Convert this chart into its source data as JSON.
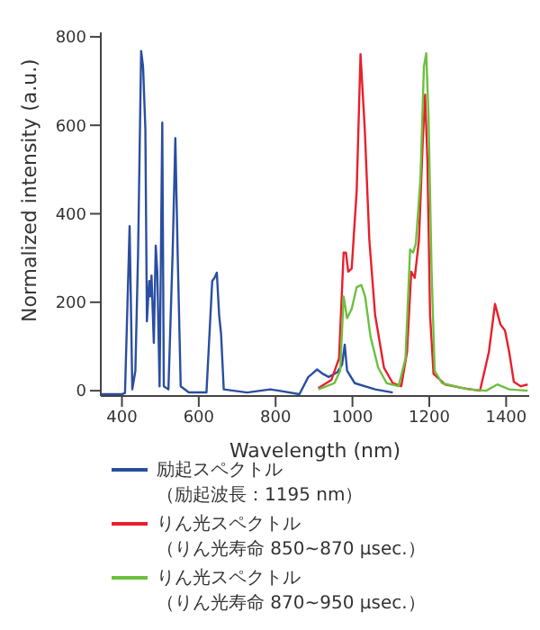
{
  "chart_data": {
    "type": "line",
    "xlabel": "Wavelength (nm)",
    "ylabel": "Normalized intensity (a.u.)",
    "xlim": [
      345,
      1460
    ],
    "ylim": [
      -12,
      810
    ],
    "xticks": [
      400,
      600,
      800,
      1000,
      1200,
      1400
    ],
    "yticks": [
      0,
      200,
      400,
      600,
      800
    ],
    "grid": false,
    "marker": "none",
    "legend": "bottom",
    "series": [
      {
        "name": "励起スペクトル（励起波長：1195 nm）",
        "color": "#2a4ea0",
        "x": [
          347,
          400,
          408,
          420,
          427,
          435,
          442,
          450,
          455,
          461,
          465,
          471,
          474,
          477,
          483,
          488,
          492,
          498,
          505,
          509,
          521,
          532,
          539,
          545,
          553,
          574,
          620,
          635,
          641,
          647,
          653,
          658,
          665,
          726,
          786,
          809,
          862,
          885,
          895,
          908,
          923,
          938,
          961,
          973,
          980,
          986,
          1006,
          1059,
          1105
        ],
        "values": [
          -8,
          -8,
          -5,
          372,
          3,
          45,
          310,
          768,
          733,
          592,
          157,
          248,
          213,
          260,
          108,
          328,
          270,
          10,
          606,
          10,
          3,
          312,
          571,
          312,
          10,
          -4,
          -4,
          248,
          255,
          267,
          171,
          129,
          3,
          -4,
          3,
          0,
          -8,
          31,
          38,
          48,
          38,
          31,
          42,
          59,
          104,
          45,
          17,
          3,
          -4
        ]
      },
      {
        "name": "りん光スペクトル（りん光寿命 850~870 μsec.）",
        "color": "#e8202a",
        "x": [
          911,
          945,
          965,
          977,
          983,
          989,
          998,
          1011,
          1021,
          1032,
          1044,
          1059,
          1082,
          1105,
          1127,
          1142,
          1153,
          1162,
          1173,
          1183,
          1189,
          1195,
          1202,
          1211,
          1241,
          1286,
          1332,
          1355,
          1371,
          1385,
          1397,
          1408,
          1420,
          1438,
          1456
        ],
        "values": [
          6,
          24,
          73,
          312,
          312,
          269,
          276,
          452,
          761,
          592,
          340,
          171,
          52,
          17,
          10,
          87,
          269,
          255,
          340,
          564,
          669,
          522,
          171,
          38,
          14,
          6,
          0,
          87,
          196,
          150,
          136,
          87,
          20,
          10,
          14
        ]
      },
      {
        "name": "りん光スペクトル（りん光寿命 870~950 μsec.）",
        "color": "#6cc040",
        "x": [
          911,
          953,
          968,
          977,
          986,
          998,
          1011,
          1023,
          1033,
          1047,
          1067,
          1089,
          1120,
          1138,
          1150,
          1158,
          1165,
          1177,
          1186,
          1192,
          1198,
          1206,
          1214,
          1233,
          1302,
          1348,
          1377,
          1408,
          1456
        ],
        "values": [
          3,
          17,
          45,
          213,
          164,
          185,
          234,
          239,
          213,
          122,
          52,
          17,
          10,
          73,
          319,
          312,
          333,
          480,
          733,
          763,
          620,
          269,
          45,
          17,
          3,
          0,
          14,
          3,
          0
        ]
      }
    ]
  }
}
